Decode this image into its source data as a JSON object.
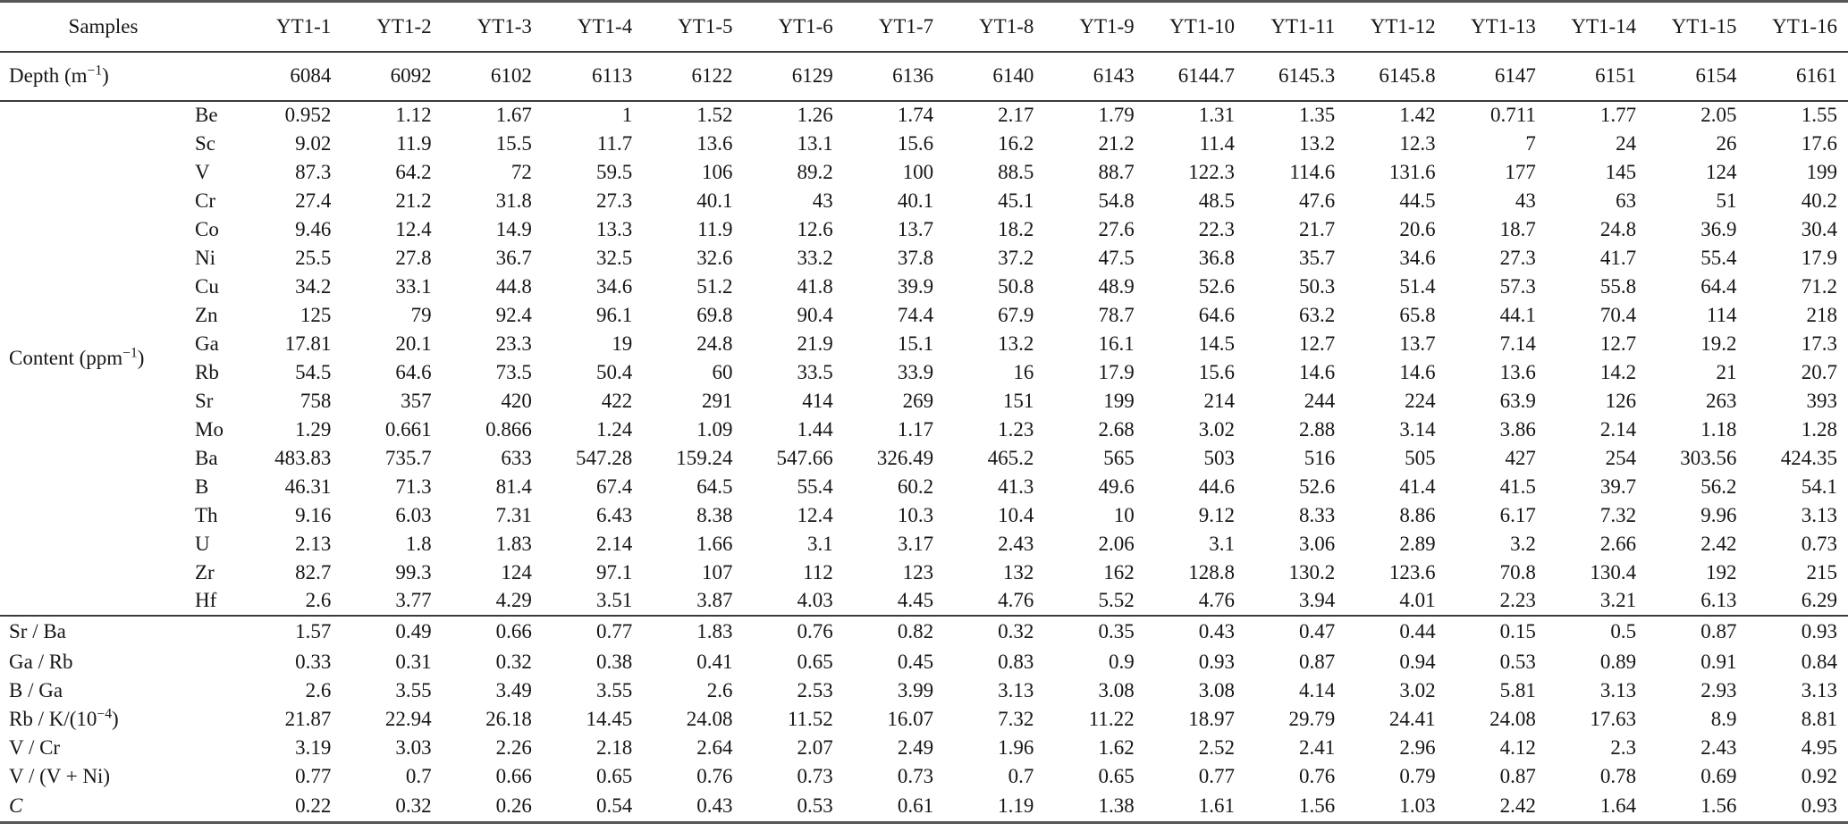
{
  "table": {
    "header": {
      "samples_label": "Samples",
      "columns": [
        "YT1-1",
        "YT1-2",
        "YT1-3",
        "YT1-4",
        "YT1-5",
        "YT1-6",
        "YT1-7",
        "YT1-8",
        "YT1-9",
        "YT1-10",
        "YT1-11",
        "YT1-12",
        "YT1-13",
        "YT1-14",
        "YT1-15",
        "YT1-16"
      ]
    },
    "depth": {
      "label": {
        "pre": "Depth (m",
        "sup": "−1",
        "post": ")"
      },
      "values": [
        "6084",
        "6092",
        "6102",
        "6113",
        "6122",
        "6129",
        "6136",
        "6140",
        "6143",
        "6144.7",
        "6145.3",
        "6145.8",
        "6147",
        "6151",
        "6154",
        "6161"
      ]
    },
    "content": {
      "label": {
        "pre": "Content (ppm",
        "sup": "−1",
        "post": ")"
      },
      "rows": [
        {
          "element": "Be",
          "values": [
            "0.952",
            "1.12",
            "1.67",
            "1",
            "1.52",
            "1.26",
            "1.74",
            "2.17",
            "1.79",
            "1.31",
            "1.35",
            "1.42",
            "0.711",
            "1.77",
            "2.05",
            "1.55"
          ]
        },
        {
          "element": "Sc",
          "values": [
            "9.02",
            "11.9",
            "15.5",
            "11.7",
            "13.6",
            "13.1",
            "15.6",
            "16.2",
            "21.2",
            "11.4",
            "13.2",
            "12.3",
            "7",
            "24",
            "26",
            "17.6"
          ]
        },
        {
          "element": "V",
          "values": [
            "87.3",
            "64.2",
            "72",
            "59.5",
            "106",
            "89.2",
            "100",
            "88.5",
            "88.7",
            "122.3",
            "114.6",
            "131.6",
            "177",
            "145",
            "124",
            "199"
          ]
        },
        {
          "element": "Cr",
          "values": [
            "27.4",
            "21.2",
            "31.8",
            "27.3",
            "40.1",
            "43",
            "40.1",
            "45.1",
            "54.8",
            "48.5",
            "47.6",
            "44.5",
            "43",
            "63",
            "51",
            "40.2"
          ]
        },
        {
          "element": "Co",
          "values": [
            "9.46",
            "12.4",
            "14.9",
            "13.3",
            "11.9",
            "12.6",
            "13.7",
            "18.2",
            "27.6",
            "22.3",
            "21.7",
            "20.6",
            "18.7",
            "24.8",
            "36.9",
            "30.4"
          ]
        },
        {
          "element": "Ni",
          "values": [
            "25.5",
            "27.8",
            "36.7",
            "32.5",
            "32.6",
            "33.2",
            "37.8",
            "37.2",
            "47.5",
            "36.8",
            "35.7",
            "34.6",
            "27.3",
            "41.7",
            "55.4",
            "17.9"
          ]
        },
        {
          "element": "Cu",
          "values": [
            "34.2",
            "33.1",
            "44.8",
            "34.6",
            "51.2",
            "41.8",
            "39.9",
            "50.8",
            "48.9",
            "52.6",
            "50.3",
            "51.4",
            "57.3",
            "55.8",
            "64.4",
            "71.2"
          ]
        },
        {
          "element": "Zn",
          "values": [
            "125",
            "79",
            "92.4",
            "96.1",
            "69.8",
            "90.4",
            "74.4",
            "67.9",
            "78.7",
            "64.6",
            "63.2",
            "65.8",
            "44.1",
            "70.4",
            "114",
            "218"
          ]
        },
        {
          "element": "Ga",
          "values": [
            "17.81",
            "20.1",
            "23.3",
            "19",
            "24.8",
            "21.9",
            "15.1",
            "13.2",
            "16.1",
            "14.5",
            "12.7",
            "13.7",
            "7.14",
            "12.7",
            "19.2",
            "17.3"
          ]
        },
        {
          "element": "Rb",
          "values": [
            "54.5",
            "64.6",
            "73.5",
            "50.4",
            "60",
            "33.5",
            "33.9",
            "16",
            "17.9",
            "15.6",
            "14.6",
            "14.6",
            "13.6",
            "14.2",
            "21",
            "20.7"
          ]
        },
        {
          "element": "Sr",
          "values": [
            "758",
            "357",
            "420",
            "422",
            "291",
            "414",
            "269",
            "151",
            "199",
            "214",
            "244",
            "224",
            "63.9",
            "126",
            "263",
            "393"
          ]
        },
        {
          "element": "Mo",
          "values": [
            "1.29",
            "0.661",
            "0.866",
            "1.24",
            "1.09",
            "1.44",
            "1.17",
            "1.23",
            "2.68",
            "3.02",
            "2.88",
            "3.14",
            "3.86",
            "2.14",
            "1.18",
            "1.28"
          ]
        },
        {
          "element": "Ba",
          "values": [
            "483.83",
            "735.7",
            "633",
            "547.28",
            "159.24",
            "547.66",
            "326.49",
            "465.2",
            "565",
            "503",
            "516",
            "505",
            "427",
            "254",
            "303.56",
            "424.35"
          ]
        },
        {
          "element": "B",
          "values": [
            "46.31",
            "71.3",
            "81.4",
            "67.4",
            "64.5",
            "55.4",
            "60.2",
            "41.3",
            "49.6",
            "44.6",
            "52.6",
            "41.4",
            "41.5",
            "39.7",
            "56.2",
            "54.1"
          ]
        },
        {
          "element": "Th",
          "values": [
            "9.16",
            "6.03",
            "7.31",
            "6.43",
            "8.38",
            "12.4",
            "10.3",
            "10.4",
            "10",
            "9.12",
            "8.33",
            "8.86",
            "6.17",
            "7.32",
            "9.96",
            "3.13"
          ]
        },
        {
          "element": "U",
          "values": [
            "2.13",
            "1.8",
            "1.83",
            "2.14",
            "1.66",
            "3.1",
            "3.17",
            "2.43",
            "2.06",
            "3.1",
            "3.06",
            "2.89",
            "3.2",
            "2.66",
            "2.42",
            "0.73"
          ]
        },
        {
          "element": "Zr",
          "values": [
            "82.7",
            "99.3",
            "124",
            "97.1",
            "107",
            "112",
            "123",
            "132",
            "162",
            "128.8",
            "130.2",
            "123.6",
            "70.8",
            "130.4",
            "192",
            "215"
          ]
        },
        {
          "element": "Hf",
          "values": [
            "2.6",
            "3.77",
            "4.29",
            "3.51",
            "3.87",
            "4.03",
            "4.45",
            "4.76",
            "5.52",
            "4.76",
            "3.94",
            "4.01",
            "2.23",
            "3.21",
            "6.13",
            "6.29"
          ]
        }
      ]
    },
    "ratios": {
      "rows": [
        {
          "label": {
            "pre": "Sr / Ba"
          },
          "values": [
            "1.57",
            "0.49",
            "0.66",
            "0.77",
            "1.83",
            "0.76",
            "0.82",
            "0.32",
            "0.35",
            "0.43",
            "0.47",
            "0.44",
            "0.15",
            "0.5",
            "0.87",
            "0.93"
          ]
        },
        {
          "label": {
            "pre": "Ga / Rb"
          },
          "values": [
            "0.33",
            "0.31",
            "0.32",
            "0.38",
            "0.41",
            "0.65",
            "0.45",
            "0.83",
            "0.9",
            "0.93",
            "0.87",
            "0.94",
            "0.53",
            "0.89",
            "0.91",
            "0.84"
          ]
        },
        {
          "label": {
            "pre": "B / Ga"
          },
          "values": [
            "2.6",
            "3.55",
            "3.49",
            "3.55",
            "2.6",
            "2.53",
            "3.99",
            "3.13",
            "3.08",
            "3.08",
            "4.14",
            "3.02",
            "5.81",
            "3.13",
            "2.93",
            "3.13"
          ]
        },
        {
          "label": {
            "pre": "Rb / K/(10",
            "sup": "−4",
            "post": ")"
          },
          "values": [
            "21.87",
            "22.94",
            "26.18",
            "14.45",
            "24.08",
            "11.52",
            "16.07",
            "7.32",
            "11.22",
            "18.97",
            "29.79",
            "24.41",
            "24.08",
            "17.63",
            "8.9",
            "8.81"
          ]
        },
        {
          "label": {
            "pre": "V / Cr"
          },
          "values": [
            "3.19",
            "3.03",
            "2.26",
            "2.18",
            "2.64",
            "2.07",
            "2.49",
            "1.96",
            "1.62",
            "2.52",
            "2.41",
            "2.96",
            "4.12",
            "2.3",
            "2.43",
            "4.95"
          ]
        },
        {
          "label": {
            "pre": "V / (V + Ni)"
          },
          "values": [
            "0.77",
            "0.7",
            "0.66",
            "0.65",
            "0.76",
            "0.73",
            "0.73",
            "0.7",
            "0.65",
            "0.77",
            "0.76",
            "0.79",
            "0.87",
            "0.78",
            "0.69",
            "0.92"
          ]
        },
        {
          "label": {
            "pre": "C"
          },
          "italic": true,
          "values": [
            "0.22",
            "0.32",
            "0.26",
            "0.54",
            "0.43",
            "0.53",
            "0.61",
            "1.19",
            "1.38",
            "1.61",
            "1.56",
            "1.03",
            "2.42",
            "1.64",
            "1.56",
            "0.93"
          ]
        }
      ]
    }
  }
}
